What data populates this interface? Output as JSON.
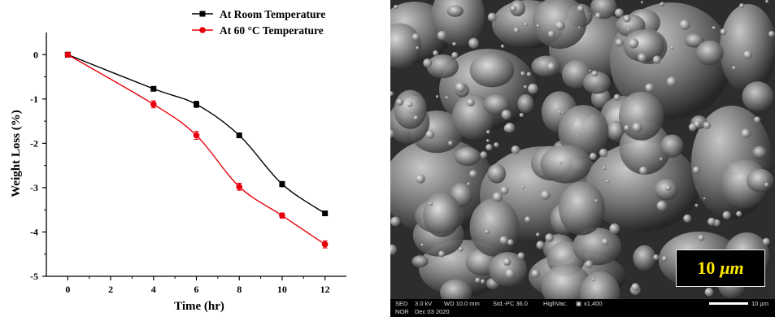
{
  "chart_data": {
    "type": "line",
    "xlabel": "Time (hr)",
    "ylabel": "Weight Loss (%)",
    "x": [
      0,
      4,
      6,
      8,
      10,
      12
    ],
    "xlim": [
      -1,
      13
    ],
    "ylim": [
      -5,
      0.5
    ],
    "xticks": [
      "0",
      "2",
      "4",
      "6",
      "8",
      "10",
      "12"
    ],
    "yticks": [
      "0",
      "-1",
      "-2",
      "-3",
      "-4",
      "-5"
    ],
    "grid": false,
    "legend_position": "top-right",
    "series": [
      {
        "name": "At Room Temperature",
        "color": "#000000",
        "marker": "square",
        "values": [
          0,
          -0.77,
          -1.12,
          -1.82,
          -2.92,
          -3.58
        ],
        "errors": [
          0,
          0.05,
          0.07,
          0.05,
          0.06,
          0.05
        ]
      },
      {
        "name": "At 60 °C Temperature",
        "color": "#e8000b",
        "marker": "circle",
        "values": [
          0,
          -1.12,
          -1.82,
          -2.98,
          -3.63,
          -4.28
        ],
        "errors": [
          0,
          0.08,
          0.09,
          0.08,
          0.06,
          0.08
        ]
      }
    ]
  },
  "sem_image": {
    "scale_label_value": "10",
    "scale_label_unit": "μm",
    "info": {
      "detector": "SED",
      "voltage": "3.0 kV",
      "wd": "WD 10.0 mm",
      "mode": "Std.-PC 36.0",
      "vacuum": "HighVac.",
      "magnification": "x1,400",
      "scale": "10 µm",
      "lens": "NOR",
      "date": "Dec 03 2020"
    }
  }
}
